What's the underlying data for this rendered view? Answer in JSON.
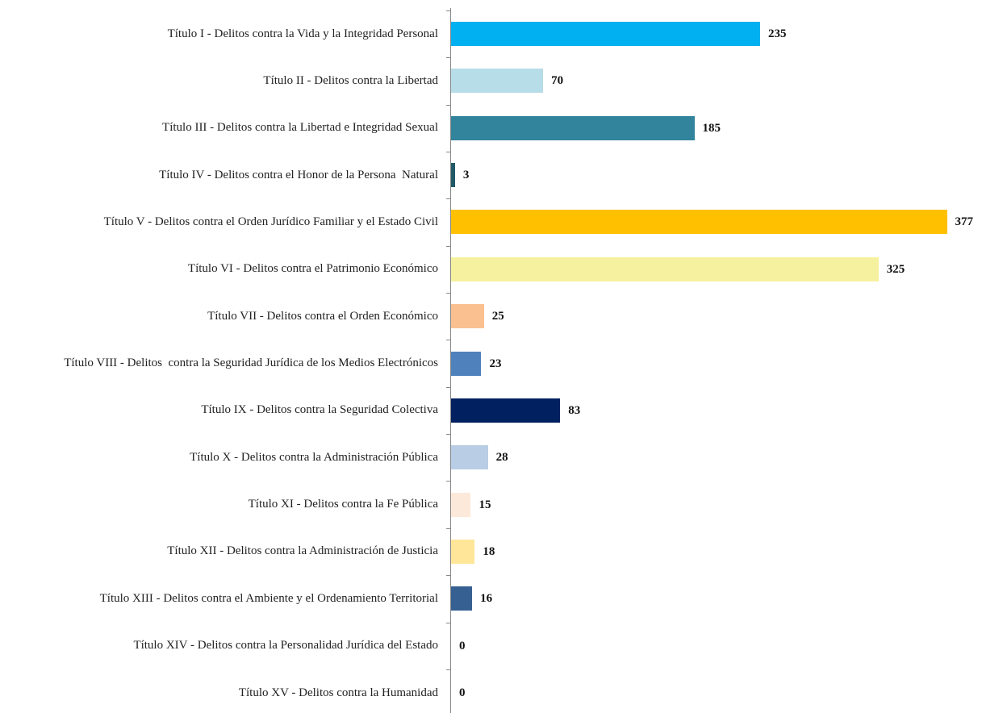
{
  "chart_data": {
    "type": "hbar",
    "categories": [
      "Título I - Delitos contra la Vida y la Integridad Personal",
      "Título II - Delitos contra la Libertad",
      "Título III - Delitos contra la Libertad e Integridad Sexual",
      "Título IV - Delitos contra el Honor de la Persona  Natural",
      "Título V - Delitos contra el Orden Jurídico Familiar y el Estado Civil",
      "Título VI - Delitos contra el Patrimonio Económico",
      "Título VII - Delitos contra el Orden Económico",
      "Título VIII - Delitos  contra la Seguridad Jurídica de los Medios Electrónicos",
      "Título IX - Delitos contra la Seguridad Colectiva",
      "Título X - Delitos contra la Administración Pública",
      "Título XI - Delitos contra la Fe Pública",
      "Título XII - Delitos contra la Administración de Justicia",
      "Título XIII - Delitos contra el Ambiente y el Ordenamiento Territorial",
      "Título XIV - Delitos contra la Personalidad Jurídica del Estado",
      "Título XV - Delitos contra la Humanidad"
    ],
    "values": [
      235,
      70,
      185,
      3,
      377,
      325,
      25,
      23,
      83,
      28,
      15,
      18,
      16,
      0,
      0
    ],
    "colors": [
      "#00b0f0",
      "#b7dde8",
      "#31849b",
      "#215968",
      "#ffc000",
      "#f6f19f",
      "#fac090",
      "#4f81bd",
      "#002060",
      "#b9cde5",
      "#fde9d9",
      "#ffe699",
      "#376092",
      "#376092",
      "#376092"
    ],
    "xlim": [
      0,
      400
    ]
  }
}
